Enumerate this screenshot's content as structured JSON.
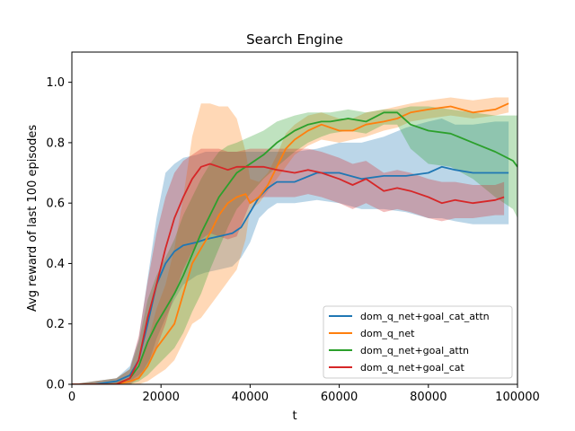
{
  "chart_data": {
    "type": "line",
    "title": "Search Engine",
    "xlabel": "t",
    "ylabel": "Avg reward of last 100 episodes",
    "xlim": [
      0,
      100000
    ],
    "ylim": [
      0,
      1.1
    ],
    "xticks": [
      0,
      20000,
      40000,
      60000,
      80000,
      100000
    ],
    "xtick_labels": [
      "0",
      "20000",
      "40000",
      "60000",
      "80000",
      "100000"
    ],
    "yticks": [
      0.0,
      0.2,
      0.4,
      0.6,
      0.8,
      1.0
    ],
    "ytick_labels": [
      "0.0",
      "0.2",
      "0.4",
      "0.6",
      "0.8",
      "1.0"
    ],
    "grid": false,
    "legend_position": "lower-right",
    "shaded_band": true,
    "series": [
      {
        "name": "dom_q_net+goal_cat_attn",
        "color": "#1f77b4",
        "x": [
          0,
          5000,
          10000,
          13000,
          15000,
          17000,
          19000,
          21000,
          23000,
          25000,
          28000,
          30000,
          33000,
          36000,
          38000,
          40000,
          42000,
          44000,
          46000,
          50000,
          55000,
          60000,
          65000,
          70000,
          75000,
          80000,
          83000,
          86000,
          90000,
          95000,
          98000
        ],
        "y": [
          0.0,
          0.0,
          0.01,
          0.03,
          0.08,
          0.2,
          0.33,
          0.4,
          0.44,
          0.46,
          0.47,
          0.48,
          0.49,
          0.5,
          0.52,
          0.57,
          0.62,
          0.65,
          0.67,
          0.67,
          0.7,
          0.7,
          0.68,
          0.69,
          0.69,
          0.7,
          0.72,
          0.71,
          0.7,
          0.7,
          0.7
        ],
        "lower": [
          0.0,
          0.0,
          0.0,
          0.01,
          0.03,
          0.06,
          0.15,
          0.22,
          0.28,
          0.33,
          0.36,
          0.37,
          0.38,
          0.39,
          0.42,
          0.47,
          0.55,
          0.58,
          0.6,
          0.6,
          0.61,
          0.6,
          0.58,
          0.58,
          0.57,
          0.55,
          0.55,
          0.54,
          0.53,
          0.53,
          0.53
        ],
        "upper": [
          0.0,
          0.01,
          0.02,
          0.06,
          0.15,
          0.35,
          0.55,
          0.7,
          0.73,
          0.75,
          0.76,
          0.77,
          0.77,
          0.77,
          0.77,
          0.77,
          0.77,
          0.77,
          0.77,
          0.77,
          0.78,
          0.8,
          0.8,
          0.82,
          0.85,
          0.87,
          0.88,
          0.86,
          0.86,
          0.87,
          0.87
        ]
      },
      {
        "name": "dom_q_net",
        "color": "#ff7f0e",
        "x": [
          0,
          5000,
          10000,
          13000,
          15000,
          17000,
          19000,
          21000,
          23000,
          25000,
          27000,
          29000,
          31000,
          33000,
          35000,
          37000,
          39000,
          40000,
          42000,
          44000,
          46000,
          48000,
          50000,
          53000,
          56000,
          60000,
          63000,
          66000,
          70000,
          73000,
          76000,
          80000,
          85000,
          90000,
          95000,
          98000
        ],
        "y": [
          0.0,
          0.0,
          0.0,
          0.01,
          0.02,
          0.06,
          0.12,
          0.16,
          0.2,
          0.3,
          0.4,
          0.45,
          0.5,
          0.56,
          0.6,
          0.62,
          0.63,
          0.6,
          0.62,
          0.66,
          0.72,
          0.78,
          0.81,
          0.84,
          0.86,
          0.84,
          0.84,
          0.86,
          0.87,
          0.88,
          0.9,
          0.91,
          0.92,
          0.9,
          0.91,
          0.93
        ],
        "lower": [
          0.0,
          0.0,
          0.0,
          0.0,
          0.0,
          0.01,
          0.03,
          0.05,
          0.08,
          0.14,
          0.2,
          0.22,
          0.26,
          0.3,
          0.34,
          0.38,
          0.48,
          0.58,
          0.6,
          0.64,
          0.68,
          0.72,
          0.76,
          0.79,
          0.81,
          0.8,
          0.81,
          0.82,
          0.84,
          0.85,
          0.87,
          0.88,
          0.89,
          0.88,
          0.89,
          0.9
        ],
        "upper": [
          0.0,
          0.0,
          0.01,
          0.02,
          0.05,
          0.14,
          0.25,
          0.33,
          0.45,
          0.62,
          0.82,
          0.93,
          0.93,
          0.92,
          0.92,
          0.88,
          0.77,
          0.68,
          0.67,
          0.7,
          0.76,
          0.83,
          0.86,
          0.89,
          0.9,
          0.88,
          0.88,
          0.9,
          0.91,
          0.92,
          0.93,
          0.94,
          0.95,
          0.94,
          0.95,
          0.95
        ]
      },
      {
        "name": "dom_q_net+goal_attn",
        "color": "#2ca02c",
        "x": [
          0,
          5000,
          10000,
          13000,
          15000,
          17000,
          19000,
          21000,
          23000,
          25000,
          27000,
          29000,
          31000,
          33000,
          35000,
          37000,
          40000,
          43000,
          46000,
          50000,
          53000,
          56000,
          58000,
          62000,
          66000,
          70000,
          73000,
          76000,
          80000,
          85000,
          90000,
          95000,
          99000,
          100000
        ],
        "y": [
          0.0,
          0.0,
          0.0,
          0.02,
          0.06,
          0.14,
          0.2,
          0.25,
          0.3,
          0.36,
          0.43,
          0.5,
          0.56,
          0.62,
          0.66,
          0.7,
          0.73,
          0.76,
          0.8,
          0.84,
          0.86,
          0.87,
          0.87,
          0.88,
          0.87,
          0.9,
          0.9,
          0.86,
          0.84,
          0.83,
          0.8,
          0.77,
          0.74,
          0.72
        ],
        "lower": [
          0.0,
          0.0,
          0.0,
          0.0,
          0.01,
          0.03,
          0.06,
          0.09,
          0.12,
          0.17,
          0.24,
          0.3,
          0.38,
          0.45,
          0.52,
          0.58,
          0.63,
          0.68,
          0.72,
          0.77,
          0.8,
          0.82,
          0.83,
          0.84,
          0.83,
          0.86,
          0.86,
          0.78,
          0.73,
          0.72,
          0.68,
          0.62,
          0.58,
          0.55
        ],
        "upper": [
          0.0,
          0.01,
          0.02,
          0.05,
          0.14,
          0.28,
          0.36,
          0.42,
          0.48,
          0.56,
          0.62,
          0.68,
          0.73,
          0.77,
          0.79,
          0.8,
          0.82,
          0.84,
          0.87,
          0.89,
          0.9,
          0.9,
          0.9,
          0.91,
          0.9,
          0.91,
          0.91,
          0.92,
          0.92,
          0.91,
          0.9,
          0.89,
          0.89,
          0.89
        ]
      },
      {
        "name": "dom_q_net+goal_cat",
        "color": "#d62728",
        "x": [
          0,
          5000,
          10000,
          13000,
          15000,
          17000,
          19000,
          21000,
          23000,
          25000,
          27000,
          29000,
          31000,
          33000,
          35000,
          37000,
          40000,
          43000,
          46000,
          50000,
          53000,
          56000,
          60000,
          63000,
          66000,
          70000,
          73000,
          76000,
          80000,
          83000,
          86000,
          90000,
          95000,
          97000
        ],
        "y": [
          0.0,
          0.0,
          0.0,
          0.02,
          0.08,
          0.22,
          0.33,
          0.45,
          0.55,
          0.62,
          0.68,
          0.72,
          0.73,
          0.72,
          0.71,
          0.72,
          0.72,
          0.72,
          0.71,
          0.7,
          0.71,
          0.7,
          0.68,
          0.66,
          0.68,
          0.64,
          0.65,
          0.64,
          0.62,
          0.6,
          0.61,
          0.6,
          0.61,
          0.62
        ],
        "lower": [
          0.0,
          0.0,
          0.0,
          0.0,
          0.02,
          0.07,
          0.12,
          0.2,
          0.3,
          0.38,
          0.44,
          0.48,
          0.5,
          0.49,
          0.48,
          0.49,
          0.6,
          0.62,
          0.62,
          0.62,
          0.63,
          0.62,
          0.6,
          0.58,
          0.6,
          0.57,
          0.58,
          0.57,
          0.55,
          0.54,
          0.55,
          0.55,
          0.56,
          0.56
        ],
        "upper": [
          0.0,
          0.01,
          0.02,
          0.05,
          0.16,
          0.34,
          0.5,
          0.62,
          0.7,
          0.74,
          0.76,
          0.78,
          0.78,
          0.78,
          0.77,
          0.77,
          0.78,
          0.78,
          0.78,
          0.78,
          0.78,
          0.77,
          0.75,
          0.73,
          0.74,
          0.7,
          0.71,
          0.7,
          0.68,
          0.67,
          0.67,
          0.66,
          0.66,
          0.67
        ]
      }
    ]
  }
}
